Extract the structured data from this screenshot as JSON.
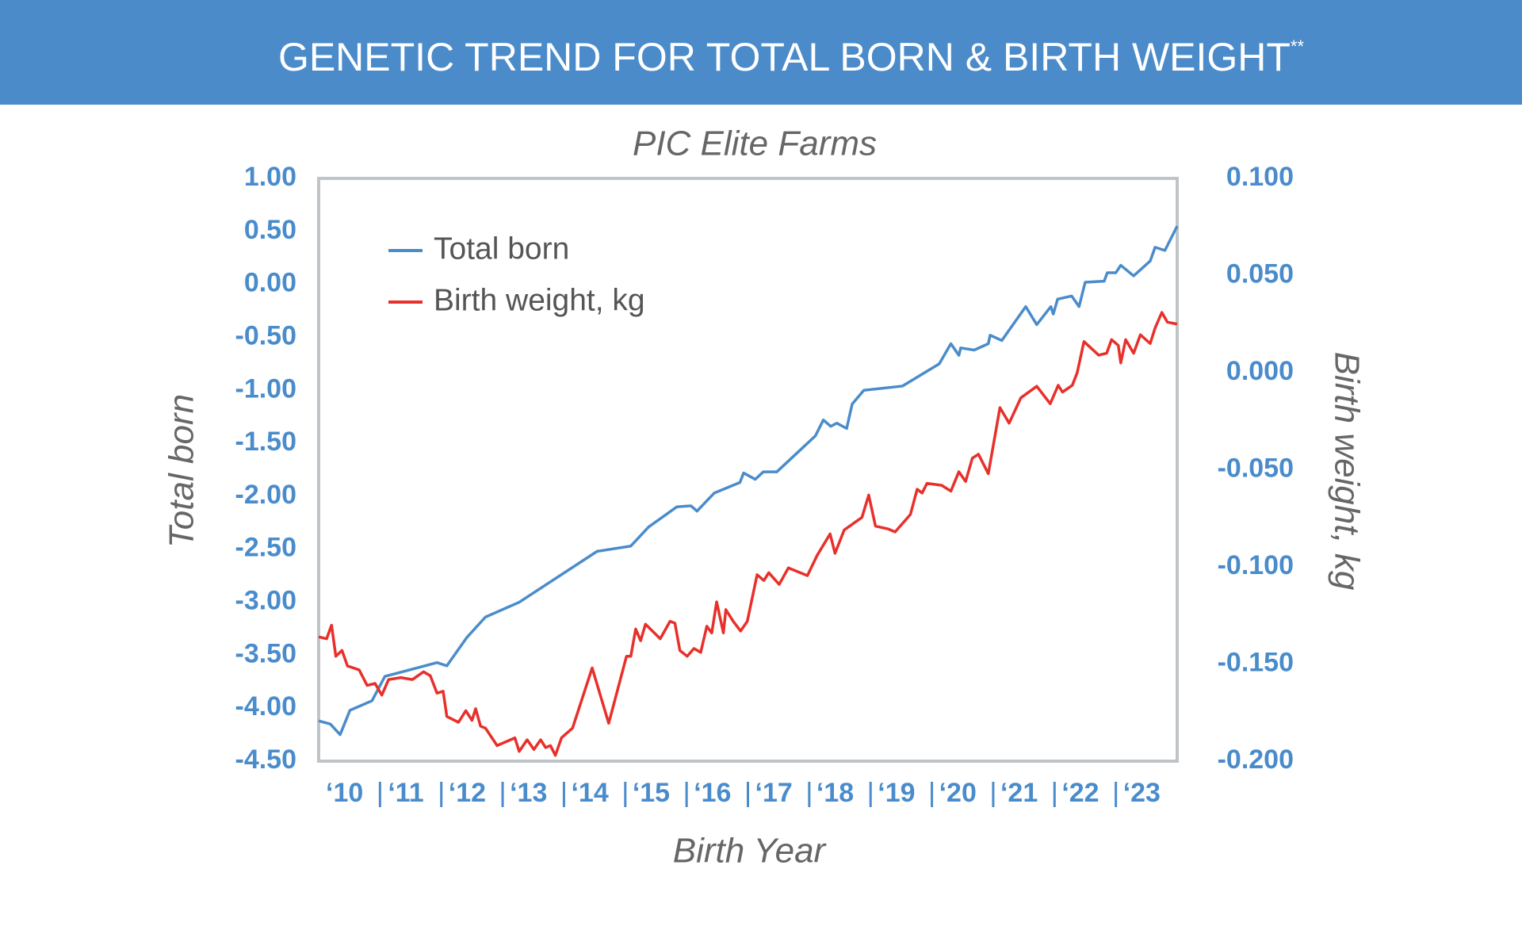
{
  "chart_data": {
    "type": "line",
    "title": "GENETIC TREND FOR TOTAL BORN & BIRTH WEIGHT",
    "title_superscript": "**",
    "subtitle": "PIC Elite Farms",
    "x_label": "Birth Year",
    "y_label": "Total born",
    "y2_label": "Birth weight, kg",
    "xlim": [
      10,
      24
    ],
    "xticks": [
      {
        "value": 10,
        "label": "‘10"
      },
      {
        "value": 11,
        "label": "‘11"
      },
      {
        "value": 12,
        "label": "‘12"
      },
      {
        "value": 13,
        "label": "‘13"
      },
      {
        "value": 14,
        "label": "‘14"
      },
      {
        "value": 15,
        "label": "‘15"
      },
      {
        "value": 16,
        "label": "‘16"
      },
      {
        "value": 17,
        "label": "‘17"
      },
      {
        "value": 18,
        "label": "‘18"
      },
      {
        "value": 19,
        "label": "‘19"
      },
      {
        "value": 20,
        "label": "‘20"
      },
      {
        "value": 21,
        "label": "‘21"
      },
      {
        "value": 22,
        "label": "‘22"
      },
      {
        "value": 23,
        "label": "‘23"
      }
    ],
    "ylim": [
      -4.5,
      1.0
    ],
    "yticks": [
      {
        "value": -4.5,
        "label": "-4.50"
      },
      {
        "value": -4.0,
        "label": "-4.00"
      },
      {
        "value": -3.5,
        "label": "-3.50"
      },
      {
        "value": -3.0,
        "label": "-3.00"
      },
      {
        "value": -2.5,
        "label": "-2.50"
      },
      {
        "value": -2.0,
        "label": "-2.00"
      },
      {
        "value": -1.5,
        "label": "-1.50"
      },
      {
        "value": -1.0,
        "label": "-1.00"
      },
      {
        "value": -0.5,
        "label": "-0.50"
      },
      {
        "value": 0,
        "label": "0.00"
      },
      {
        "value": 0.5,
        "label": "0.50"
      },
      {
        "value": 1.0,
        "label": "1.00"
      }
    ],
    "y2lim": [
      -0.2,
      0.1
    ],
    "y2ticks": [
      {
        "value": -0.2,
        "label": "-0.200"
      },
      {
        "value": -0.15,
        "label": "-0.150"
      },
      {
        "value": -0.1,
        "label": "-0.100"
      },
      {
        "value": -0.05,
        "label": "-0.050"
      },
      {
        "value": 0,
        "label": "0.000"
      },
      {
        "value": 0.05,
        "label": "0.050"
      },
      {
        "value": 0.1,
        "label": "0.100"
      }
    ],
    "grid": false,
    "legend": "upper left",
    "series": [
      {
        "name": "Total born",
        "color": "#4a8ccb",
        "axis": "y",
        "x": [
          10.0,
          10.19,
          10.35,
          10.51,
          10.87,
          11.08,
          11.93,
          12.09,
          12.42,
          12.72,
          13.27,
          14.54,
          15.09,
          15.38,
          15.84,
          16.07,
          16.17,
          16.45,
          16.87,
          16.93,
          17.12,
          17.25,
          17.47,
          18.1,
          18.23,
          18.35,
          18.45,
          18.61,
          18.7,
          18.89,
          19.52,
          20.12,
          20.31,
          20.44,
          20.47,
          20.69,
          20.92,
          20.95,
          21.14,
          21.53,
          21.71,
          21.94,
          21.98,
          22.05,
          22.28,
          22.4,
          22.5,
          22.81,
          22.86,
          23.0,
          23.08,
          23.29,
          23.56,
          23.64,
          23.8,
          24.0
        ],
        "values": [
          -4.12,
          -4.15,
          -4.25,
          -4.02,
          -3.93,
          -3.7,
          -3.57,
          -3.6,
          -3.33,
          -3.14,
          -3.0,
          -2.52,
          -2.47,
          -2.29,
          -2.1,
          -2.09,
          -2.14,
          -1.97,
          -1.87,
          -1.78,
          -1.84,
          -1.77,
          -1.77,
          -1.43,
          -1.28,
          -1.34,
          -1.31,
          -1.36,
          -1.13,
          -1.0,
          -0.96,
          -0.75,
          -0.56,
          -0.67,
          -0.6,
          -0.62,
          -0.56,
          -0.48,
          -0.53,
          -0.21,
          -0.38,
          -0.21,
          -0.28,
          -0.14,
          -0.11,
          -0.21,
          0.02,
          0.03,
          0.11,
          0.11,
          0.18,
          0.08,
          0.22,
          0.35,
          0.32,
          0.55
        ]
      },
      {
        "name": "Birth weight, kg",
        "color": "#e8302b",
        "axis": "y2",
        "x": [
          10.0,
          10.13,
          10.21,
          10.28,
          10.38,
          10.47,
          10.66,
          10.79,
          10.92,
          11.03,
          11.14,
          11.34,
          11.53,
          11.71,
          11.82,
          11.93,
          12.03,
          12.09,
          12.28,
          12.4,
          12.5,
          12.56,
          12.64,
          12.72,
          12.91,
          13.2,
          13.27,
          13.4,
          13.51,
          13.62,
          13.7,
          13.78,
          13.86,
          13.96,
          14.14,
          14.46,
          14.73,
          15.02,
          15.09,
          15.17,
          15.25,
          15.33,
          15.57,
          15.73,
          15.81,
          15.89,
          16.01,
          16.12,
          16.23,
          16.33,
          16.41,
          16.49,
          16.6,
          16.64,
          16.76,
          16.88,
          16.99,
          17.15,
          17.26,
          17.34,
          17.51,
          17.66,
          17.97,
          18.13,
          18.34,
          18.42,
          18.57,
          18.86,
          18.97,
          19.08,
          19.29,
          19.4,
          19.65,
          19.76,
          19.84,
          19.92,
          20.16,
          20.31,
          20.44,
          20.55,
          20.66,
          20.76,
          20.92,
          21.11,
          21.26,
          21.45,
          21.71,
          21.93,
          22.06,
          22.13,
          22.29,
          22.37,
          22.48,
          22.72,
          22.85,
          22.93,
          23.04,
          23.08,
          23.16,
          23.29,
          23.4,
          23.56,
          23.64,
          23.75,
          23.84,
          24.0
        ],
        "values": [
          -0.136,
          -0.137,
          -0.13,
          -0.146,
          -0.143,
          -0.151,
          -0.153,
          -0.161,
          -0.16,
          -0.166,
          -0.158,
          -0.157,
          -0.158,
          -0.154,
          -0.156,
          -0.165,
          -0.164,
          -0.177,
          -0.18,
          -0.174,
          -0.179,
          -0.173,
          -0.182,
          -0.183,
          -0.192,
          -0.188,
          -0.195,
          -0.189,
          -0.194,
          -0.189,
          -0.193,
          -0.192,
          -0.197,
          -0.188,
          -0.183,
          -0.152,
          -0.1805,
          -0.146,
          -0.146,
          -0.132,
          -0.138,
          -0.1295,
          -0.137,
          -0.128,
          -0.129,
          -0.143,
          -0.146,
          -0.142,
          -0.144,
          -0.1305,
          -0.134,
          -0.118,
          -0.134,
          -0.122,
          -0.128,
          -0.133,
          -0.128,
          -0.104,
          -0.107,
          -0.103,
          -0.109,
          -0.1005,
          -0.1045,
          -0.094,
          -0.083,
          -0.093,
          -0.081,
          -0.0745,
          -0.063,
          -0.079,
          -0.0805,
          -0.082,
          -0.073,
          -0.06,
          -0.062,
          -0.057,
          -0.058,
          -0.061,
          -0.051,
          -0.056,
          -0.044,
          -0.042,
          -0.052,
          -0.018,
          -0.026,
          -0.013,
          -0.007,
          -0.016,
          -0.0065,
          -0.01,
          -0.0065,
          0.0,
          0.016,
          0.009,
          0.01,
          0.017,
          0.014,
          0.005,
          0.017,
          0.01,
          0.0195,
          0.015,
          0.023,
          0.031,
          0.026,
          0.025
        ]
      }
    ]
  }
}
